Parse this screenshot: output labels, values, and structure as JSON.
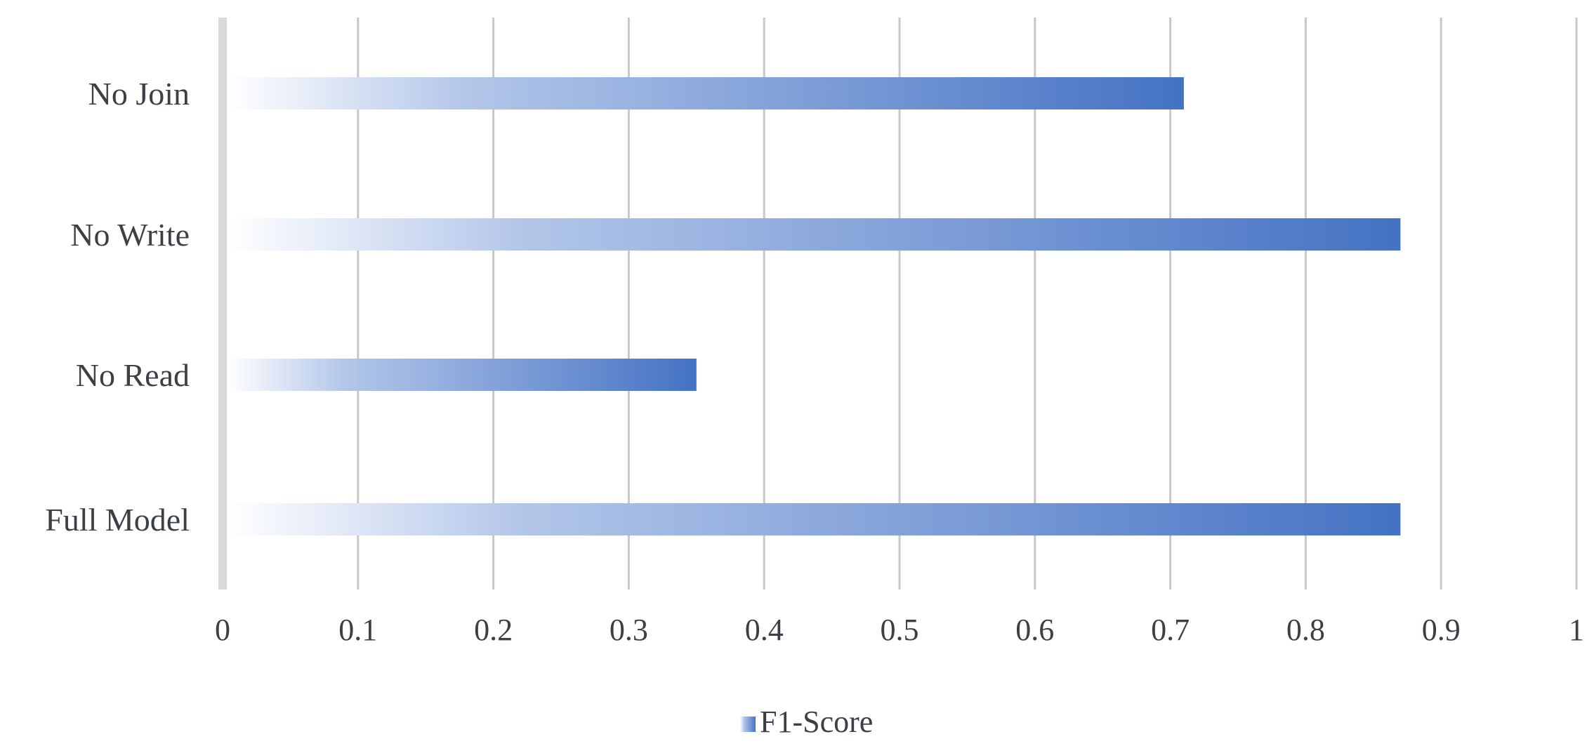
{
  "chart_data": {
    "type": "bar",
    "orientation": "horizontal",
    "categories": [
      "No Join",
      "No Write",
      "No Read",
      "Full Model"
    ],
    "series": [
      {
        "name": "F1-Score",
        "values": [
          0.71,
          0.87,
          0.35,
          0.87
        ]
      }
    ],
    "xlim": [
      0,
      1
    ],
    "x_ticks": [
      "0",
      "0.1",
      "0.2",
      "0.3",
      "0.4",
      "0.5",
      "0.6",
      "0.7",
      "0.8",
      "0.9",
      "1"
    ],
    "title": "",
    "xlabel": "",
    "ylabel": "",
    "grid": "vertical",
    "legend_position": "bottom",
    "colors": {
      "bar_start": "#ffffff",
      "bar_end": "#4472c4",
      "grid": "#c8c8c8",
      "axis": "#d9d9d9",
      "text": "#3b3f46"
    }
  }
}
